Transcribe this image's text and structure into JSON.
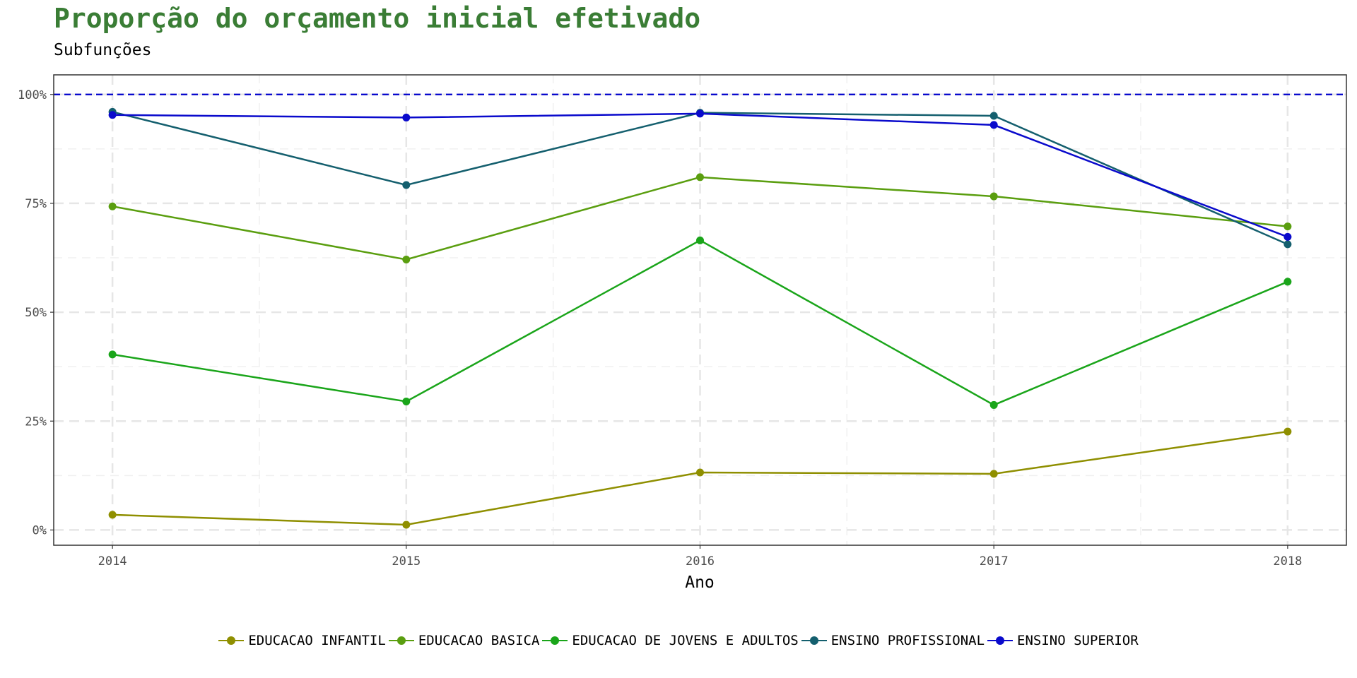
{
  "header": {
    "title": "Proporção do orçamento inicial efetivado",
    "subtitle": "Subfunções"
  },
  "chart_data": {
    "type": "line",
    "title": "Proporção do orçamento inicial efetivado",
    "subtitle": "Subfunções",
    "xlabel": "Ano",
    "ylabel": "",
    "x": [
      2014,
      2015,
      2016,
      2017,
      2018
    ],
    "x_tick_labels": [
      "2014",
      "2015",
      "2016",
      "2017",
      "2018"
    ],
    "y_tick_labels": [
      "0%",
      "25%",
      "50%",
      "75%",
      "100%"
    ],
    "y_ticks": [
      0,
      0.25,
      0.5,
      0.75,
      1.0
    ],
    "xlim": [
      2013.8,
      2018.2
    ],
    "ylim": [
      -0.035,
      1.045
    ],
    "reference_line": {
      "y": 1.0,
      "style": "dashed",
      "color": "#0000cc"
    },
    "grid": true,
    "legend_position": "bottom",
    "series": [
      {
        "name": "EDUCACAO INFANTIL",
        "color": "#8f8f00",
        "values": [
          0.035,
          0.012,
          0.132,
          0.129,
          0.226
        ]
      },
      {
        "name": "EDUCACAO BASICA",
        "color": "#5a9e0f",
        "values": [
          0.743,
          0.621,
          0.81,
          0.766,
          0.697
        ]
      },
      {
        "name": "EDUCACAO DE JOVENS E ADULTOS",
        "color": "#1aa51a",
        "values": [
          0.403,
          0.295,
          0.665,
          0.287,
          0.57
        ]
      },
      {
        "name": "ENSINO PROFISSIONAL",
        "color": "#145f6e",
        "values": [
          0.96,
          0.792,
          0.958,
          0.951,
          0.656
        ]
      },
      {
        "name": "ENSINO SUPERIOR",
        "color": "#0a0acc",
        "values": [
          0.953,
          0.947,
          0.956,
          0.93,
          0.673
        ]
      }
    ]
  }
}
